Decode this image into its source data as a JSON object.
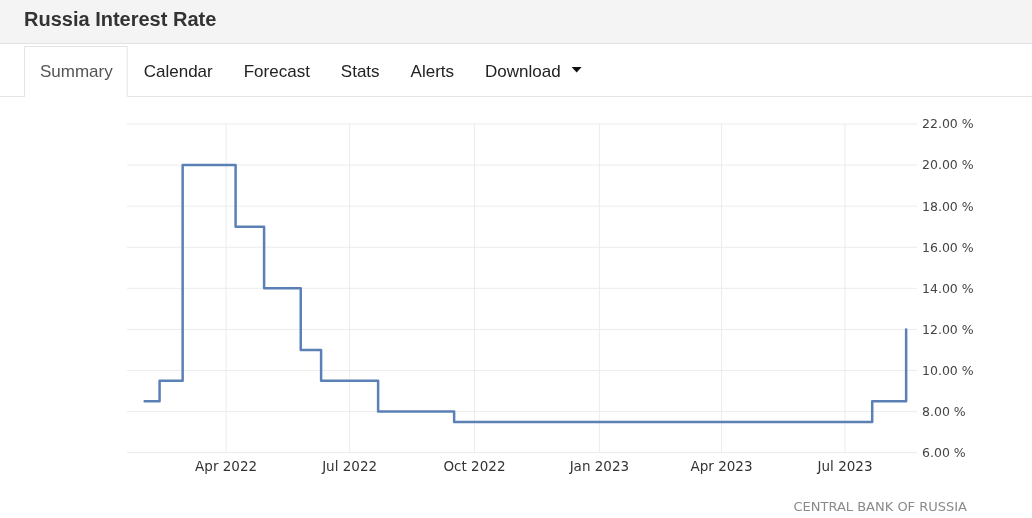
{
  "chart_data": {
    "type": "step",
    "title": "Russia Interest Rate",
    "annotations": [
      "Summary",
      "Calendar",
      "Forecast",
      "Stats",
      "Alerts",
      "Download",
      "CENTRAL BANK OF RUSSIA"
    ],
    "x": [
      "2022-01-31",
      "2022-02-11",
      "2022-02-28",
      "2022-04-08",
      "2022-04-29",
      "2022-05-26",
      "2022-06-10",
      "2022-07-22",
      "2022-09-16",
      "2023-07-21",
      "2023-08-15"
    ],
    "series": [
      {
        "color": "#5b80b5",
        "values": [
          8.5,
          9.5,
          20,
          17,
          14,
          11,
          9.5,
          8,
          7.5,
          8.5,
          12
        ]
      }
    ],
    "xlim": [
      "2022-01-18",
      "2023-08-23"
    ],
    "xticks": [
      {
        "value": "2022-04-01",
        "label": "Apr 2022"
      },
      {
        "value": "2022-07-01",
        "label": "Jul 2022"
      },
      {
        "value": "2022-10-01",
        "label": "Oct 2022"
      },
      {
        "value": "2023-01-01",
        "label": "Jan 2023"
      },
      {
        "value": "2023-04-01",
        "label": "Apr 2023"
      },
      {
        "value": "2023-07-01",
        "label": "Jul 2023"
      }
    ],
    "ylim": [
      6,
      22
    ],
    "yticks": [
      {
        "value": 6,
        "label": "6.00 %"
      },
      {
        "value": 8,
        "label": "8.00 %"
      },
      {
        "value": 10,
        "label": "10.00 %"
      },
      {
        "value": 12,
        "label": "12.00 %"
      },
      {
        "value": 14,
        "label": "14.00 %"
      },
      {
        "value": 16,
        "label": "16.00 %"
      },
      {
        "value": 18,
        "label": "18.00 %"
      },
      {
        "value": 20,
        "label": "20.00 %"
      },
      {
        "value": 22,
        "label": "22.00 %"
      }
    ],
    "grid": true
  }
}
